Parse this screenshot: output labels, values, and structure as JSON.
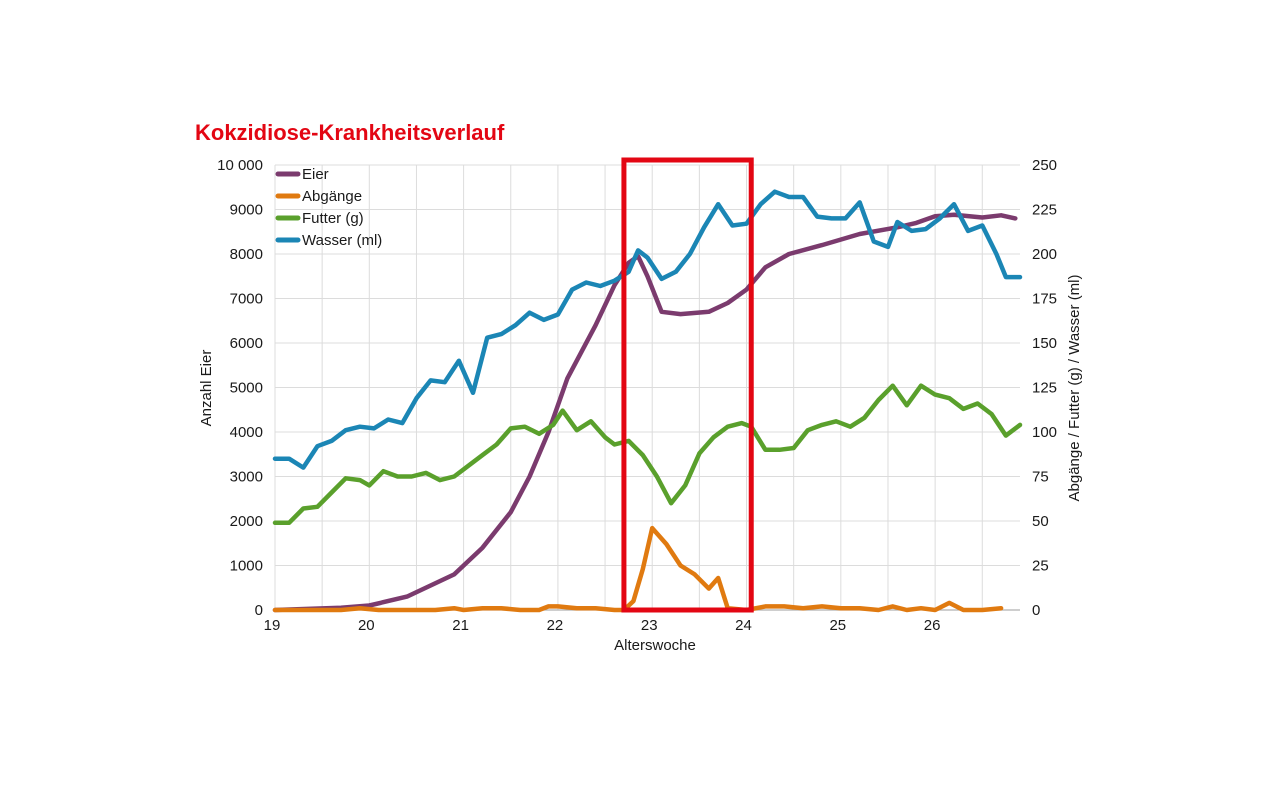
{
  "chart_data": {
    "type": "line",
    "title": "Kokzidiose-Krankheitsverlauf",
    "xlabel": "Alterswoche",
    "ylabel_left": "Anzahl Eier",
    "ylabel_right": "Abgänge / Futter (g) / Wasser (ml)",
    "xlim": [
      19,
      26.9
    ],
    "ylim_left": [
      0,
      10000
    ],
    "ylim_right": [
      0,
      250
    ],
    "x_ticks": [
      "19",
      "20",
      "21",
      "22",
      "23",
      "24",
      "25",
      "26"
    ],
    "y_ticks_left": [
      "0",
      "1000",
      "2000",
      "3000",
      "4000",
      "5000",
      "6000",
      "7000",
      "8000",
      "9000",
      "10 000"
    ],
    "y_ticks_right": [
      "0",
      "25",
      "50",
      "75",
      "100",
      "125",
      "150",
      "175",
      "200",
      "225",
      "250"
    ],
    "grid": true,
    "legend_position": "top-left",
    "highlight": {
      "x_start": 22.7,
      "x_end": 24.05,
      "color": "#e30613"
    },
    "series": [
      {
        "name": "Eier",
        "axis": "left",
        "color": "#7b3b6e",
        "points": [
          [
            19,
            0
          ],
          [
            19.7,
            50
          ],
          [
            20,
            100
          ],
          [
            20.4,
            300
          ],
          [
            20.9,
            800
          ],
          [
            21.2,
            1400
          ],
          [
            21.5,
            2200
          ],
          [
            21.7,
            3000
          ],
          [
            21.9,
            4000
          ],
          [
            22.1,
            5200
          ],
          [
            22.4,
            6400
          ],
          [
            22.6,
            7300
          ],
          [
            22.75,
            7800
          ],
          [
            22.85,
            7950
          ],
          [
            22.95,
            7500
          ],
          [
            23.1,
            6700
          ],
          [
            23.3,
            6650
          ],
          [
            23.6,
            6700
          ],
          [
            23.8,
            6900
          ],
          [
            24,
            7200
          ],
          [
            24.2,
            7700
          ],
          [
            24.45,
            8000
          ],
          [
            24.8,
            8200
          ],
          [
            25.2,
            8450
          ],
          [
            25.6,
            8600
          ],
          [
            25.8,
            8700
          ],
          [
            26,
            8850
          ],
          [
            26.2,
            8880
          ],
          [
            26.5,
            8820
          ],
          [
            26.7,
            8870
          ],
          [
            26.85,
            8800
          ]
        ]
      },
      {
        "name": "Abgänge",
        "axis": "right",
        "color": "#e07a10",
        "points": [
          [
            19,
            0
          ],
          [
            19.3,
            0
          ],
          [
            19.5,
            0
          ],
          [
            19.7,
            0
          ],
          [
            19.9,
            1
          ],
          [
            20.1,
            0
          ],
          [
            20.3,
            0
          ],
          [
            20.5,
            0
          ],
          [
            20.7,
            0
          ],
          [
            20.9,
            1
          ],
          [
            21,
            0
          ],
          [
            21.2,
            1
          ],
          [
            21.4,
            1
          ],
          [
            21.6,
            0
          ],
          [
            21.8,
            0
          ],
          [
            21.9,
            2
          ],
          [
            22,
            2
          ],
          [
            22.2,
            1
          ],
          [
            22.4,
            1
          ],
          [
            22.6,
            0
          ],
          [
            22.7,
            0
          ],
          [
            22.8,
            5
          ],
          [
            22.9,
            23
          ],
          [
            23.0,
            46
          ],
          [
            23.15,
            37
          ],
          [
            23.3,
            25
          ],
          [
            23.45,
            20
          ],
          [
            23.6,
            12
          ],
          [
            23.7,
            18
          ],
          [
            23.8,
            1
          ],
          [
            24,
            0
          ],
          [
            24.2,
            2
          ],
          [
            24.4,
            2
          ],
          [
            24.6,
            1
          ],
          [
            24.8,
            2
          ],
          [
            25,
            1
          ],
          [
            25.2,
            1
          ],
          [
            25.4,
            0
          ],
          [
            25.55,
            2
          ],
          [
            25.7,
            0
          ],
          [
            25.85,
            1
          ],
          [
            26,
            0
          ],
          [
            26.15,
            4
          ],
          [
            26.3,
            0
          ],
          [
            26.5,
            0
          ],
          [
            26.7,
            1
          ]
        ]
      },
      {
        "name": "Futter (g)",
        "axis": "right",
        "color": "#5aa02c",
        "points": [
          [
            19,
            49
          ],
          [
            19.15,
            49
          ],
          [
            19.3,
            57
          ],
          [
            19.45,
            58
          ],
          [
            19.6,
            66
          ],
          [
            19.75,
            74
          ],
          [
            19.9,
            73
          ],
          [
            20,
            70
          ],
          [
            20.15,
            78
          ],
          [
            20.3,
            75
          ],
          [
            20.45,
            75
          ],
          [
            20.6,
            77
          ],
          [
            20.75,
            73
          ],
          [
            20.9,
            75
          ],
          [
            21.05,
            81
          ],
          [
            21.2,
            87
          ],
          [
            21.35,
            93
          ],
          [
            21.5,
            102
          ],
          [
            21.65,
            103
          ],
          [
            21.8,
            99
          ],
          [
            21.95,
            104
          ],
          [
            22.05,
            112
          ],
          [
            22.2,
            101
          ],
          [
            22.35,
            106
          ],
          [
            22.5,
            97
          ],
          [
            22.6,
            93
          ],
          [
            22.75,
            95
          ],
          [
            22.9,
            87
          ],
          [
            23.05,
            75
          ],
          [
            23.2,
            60
          ],
          [
            23.35,
            70
          ],
          [
            23.5,
            88
          ],
          [
            23.65,
            97
          ],
          [
            23.8,
            103
          ],
          [
            23.95,
            105
          ],
          [
            24.05,
            103
          ],
          [
            24.2,
            90
          ],
          [
            24.35,
            90
          ],
          [
            24.5,
            91
          ],
          [
            24.65,
            101
          ],
          [
            24.8,
            104
          ],
          [
            24.95,
            106
          ],
          [
            25.1,
            103
          ],
          [
            25.25,
            108
          ],
          [
            25.4,
            118
          ],
          [
            25.55,
            126
          ],
          [
            25.7,
            115
          ],
          [
            25.85,
            126
          ],
          [
            26,
            121
          ],
          [
            26.15,
            119
          ],
          [
            26.3,
            113
          ],
          [
            26.45,
            116
          ],
          [
            26.6,
            110
          ],
          [
            26.75,
            98
          ],
          [
            26.9,
            104
          ]
        ]
      },
      {
        "name": "Wasser (ml)",
        "axis": "right",
        "color": "#1b86b5",
        "points": [
          [
            19,
            85
          ],
          [
            19.15,
            85
          ],
          [
            19.3,
            80
          ],
          [
            19.45,
            92
          ],
          [
            19.6,
            95
          ],
          [
            19.75,
            101
          ],
          [
            19.9,
            103
          ],
          [
            20.05,
            102
          ],
          [
            20.2,
            107
          ],
          [
            20.35,
            105
          ],
          [
            20.5,
            119
          ],
          [
            20.65,
            129
          ],
          [
            20.8,
            128
          ],
          [
            20.95,
            140
          ],
          [
            21.1,
            122
          ],
          [
            21.25,
            153
          ],
          [
            21.4,
            155
          ],
          [
            21.55,
            160
          ],
          [
            21.7,
            167
          ],
          [
            21.85,
            163
          ],
          [
            22,
            166
          ],
          [
            22.15,
            180
          ],
          [
            22.3,
            184
          ],
          [
            22.45,
            182
          ],
          [
            22.6,
            185
          ],
          [
            22.75,
            190
          ],
          [
            22.85,
            202
          ],
          [
            22.95,
            198
          ],
          [
            23.1,
            186
          ],
          [
            23.25,
            190
          ],
          [
            23.4,
            200
          ],
          [
            23.55,
            215
          ],
          [
            23.7,
            228
          ],
          [
            23.85,
            216
          ],
          [
            24,
            217
          ],
          [
            24.15,
            228
          ],
          [
            24.3,
            235
          ],
          [
            24.45,
            232
          ],
          [
            24.6,
            232
          ],
          [
            24.75,
            221
          ],
          [
            24.9,
            220
          ],
          [
            25.05,
            220
          ],
          [
            25.2,
            229
          ],
          [
            25.35,
            207
          ],
          [
            25.5,
            204
          ],
          [
            25.6,
            218
          ],
          [
            25.75,
            213
          ],
          [
            25.9,
            214
          ],
          [
            26.05,
            220
          ],
          [
            26.2,
            228
          ],
          [
            26.35,
            213
          ],
          [
            26.5,
            216
          ],
          [
            26.65,
            200
          ],
          [
            26.75,
            187
          ],
          [
            26.9,
            187
          ]
        ]
      }
    ]
  }
}
